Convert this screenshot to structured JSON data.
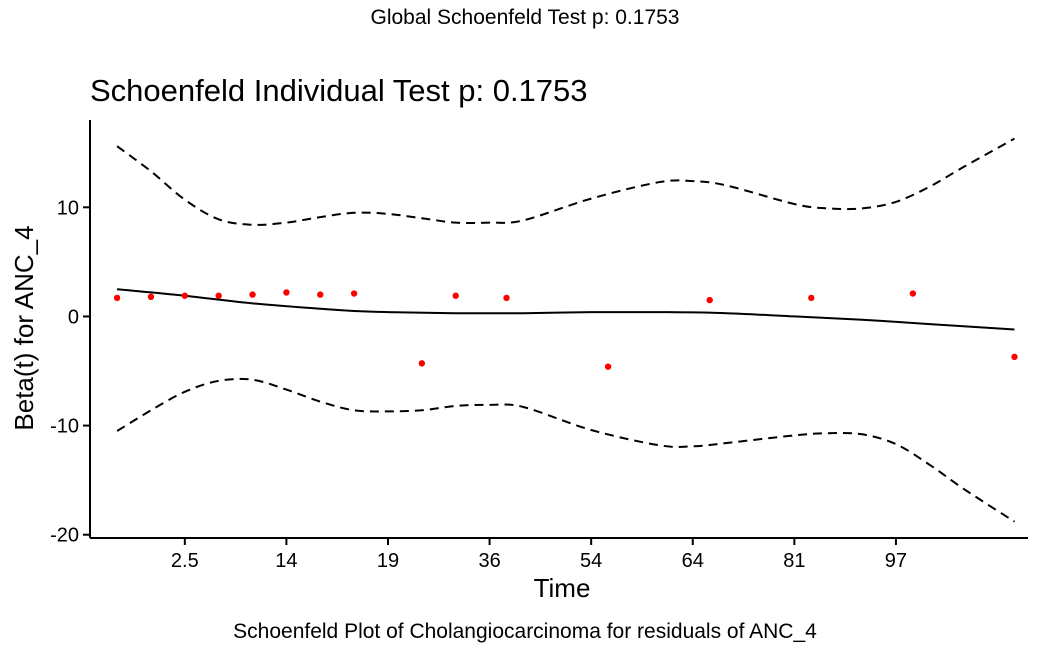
{
  "super_title": "Global Schoenfeld Test p: 0.1753",
  "caption": "Schoenfeld Plot of Cholangiocarcinoma for residuals of ANC_4",
  "chart_data": {
    "type": "scatter",
    "title": "Schoenfeld Individual Test p: 0.1753",
    "xlabel": "Time",
    "ylabel": "Beta(t) for ANC_4",
    "x_tick_labels": [
      "2.5",
      "14",
      "19",
      "36",
      "54",
      "64",
      "81",
      "97"
    ],
    "x_tick_positions": [
      2,
      5,
      8,
      11,
      14,
      17,
      20,
      23
    ],
    "xlim": [
      -0.8,
      26.9
    ],
    "y_ticks": [
      -20,
      -10,
      0,
      10
    ],
    "y_tick_labels": [
      "-20",
      "-10",
      "0",
      "10"
    ],
    "ylim": [
      -20.3,
      18.0
    ],
    "grid": false,
    "point_color": "#ff0000",
    "points": [
      {
        "x": 0,
        "y": 1.7
      },
      {
        "x": 1,
        "y": 1.8
      },
      {
        "x": 2,
        "y": 1.9
      },
      {
        "x": 3,
        "y": 1.9
      },
      {
        "x": 4,
        "y": 2.0
      },
      {
        "x": 5,
        "y": 2.2
      },
      {
        "x": 6,
        "y": 2.0
      },
      {
        "x": 7,
        "y": 2.1
      },
      {
        "x": 9,
        "y": -4.3
      },
      {
        "x": 10,
        "y": 1.9
      },
      {
        "x": 11.5,
        "y": 1.7
      },
      {
        "x": 14.5,
        "y": -4.6
      },
      {
        "x": 17.5,
        "y": 1.5
      },
      {
        "x": 20.5,
        "y": 1.7
      },
      {
        "x": 23.5,
        "y": 2.1
      },
      {
        "x": 26.5,
        "y": -3.7
      }
    ],
    "series": [
      {
        "name": "fit",
        "style": "solid",
        "x": [
          0,
          2,
          4,
          6,
          7,
          8,
          10,
          12,
          14,
          16,
          18,
          20,
          22,
          24,
          26.5
        ],
        "y": [
          2.5,
          1.9,
          1.2,
          0.7,
          0.5,
          0.4,
          0.3,
          0.3,
          0.4,
          0.4,
          0.3,
          0.0,
          -0.3,
          -0.7,
          -1.2
        ]
      },
      {
        "name": "upper",
        "style": "dashed",
        "x": [
          0,
          1,
          2,
          3,
          4,
          5,
          6,
          7,
          8,
          9,
          10,
          11,
          12,
          14,
          16,
          17,
          18,
          20,
          21,
          22,
          23,
          24,
          25,
          26.5
        ],
        "y": [
          15.6,
          13.3,
          10.7,
          8.9,
          8.4,
          8.6,
          9.1,
          9.5,
          9.4,
          9.0,
          8.6,
          8.6,
          8.8,
          10.8,
          12.3,
          12.4,
          12.0,
          10.3,
          9.9,
          9.9,
          10.5,
          11.9,
          13.7,
          16.3
        ]
      },
      {
        "name": "lower",
        "style": "dashed",
        "x": [
          0,
          1,
          2,
          3,
          4,
          5,
          6,
          7,
          8,
          9,
          10,
          11,
          12,
          14,
          16,
          17,
          18,
          20,
          21,
          22,
          23,
          24,
          25,
          26.5
        ],
        "y": [
          -10.5,
          -8.6,
          -6.9,
          -5.9,
          -5.8,
          -6.7,
          -7.8,
          -8.6,
          -8.7,
          -8.6,
          -8.2,
          -8.1,
          -8.3,
          -10.4,
          -11.8,
          -11.9,
          -11.6,
          -10.9,
          -10.7,
          -10.8,
          -11.7,
          -13.6,
          -15.8,
          -18.8
        ]
      }
    ]
  }
}
